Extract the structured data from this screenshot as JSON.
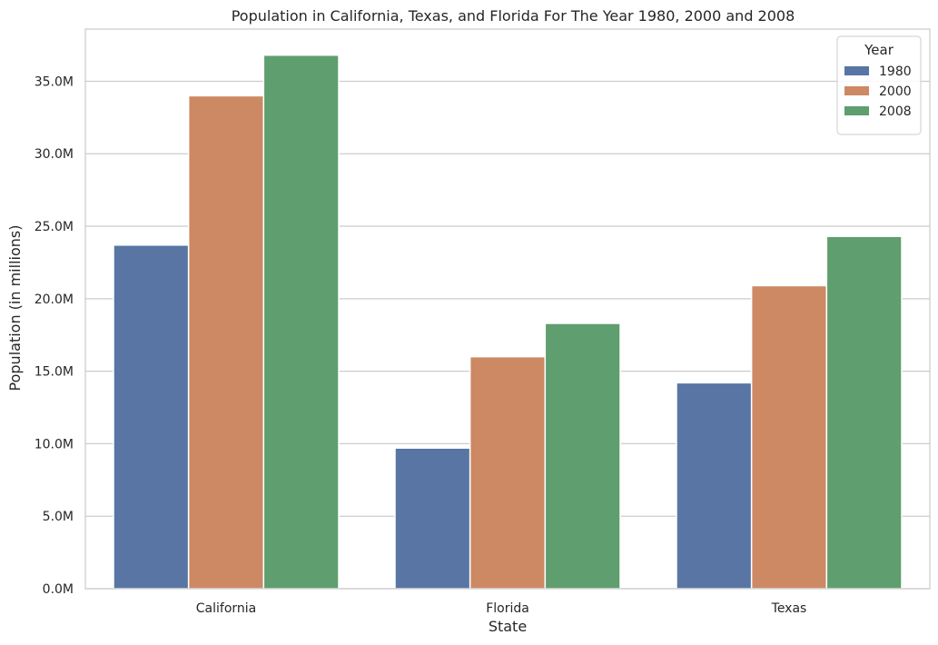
{
  "chart_data": {
    "type": "bar",
    "title": "Population in California, Texas, and Florida For The Year 1980, 2000 and 2008",
    "xlabel": "State",
    "ylabel": "Population (in millions)",
    "categories": [
      "California",
      "Florida",
      "Texas"
    ],
    "series": [
      {
        "name": "1980",
        "color": "#5875a4",
        "values": [
          23.7,
          9.7,
          14.2
        ]
      },
      {
        "name": "2000",
        "color": "#cc8963",
        "values": [
          34.0,
          16.0,
          20.9
        ]
      },
      {
        "name": "2008",
        "color": "#5f9e6e",
        "values": [
          36.8,
          18.3,
          24.3
        ]
      }
    ],
    "ylim": [
      0,
      38.6
    ],
    "yticks": [
      0,
      5,
      10,
      15,
      20,
      25,
      30,
      35
    ],
    "ytick_labels": [
      "0.0M",
      "5.0M",
      "10.0M",
      "15.0M",
      "20.0M",
      "25.0M",
      "30.0M",
      "35.0M"
    ],
    "grid": true,
    "legend": {
      "title": "Year",
      "placement": "top-right"
    }
  }
}
